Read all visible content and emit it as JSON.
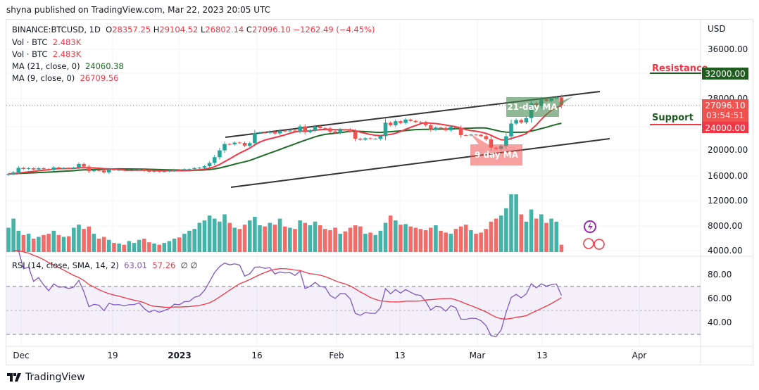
{
  "published": "shyna published on TradingView.com, Mar 22, 2023 20:05 UTC",
  "legend": {
    "symbol": "BINANCE:BTCUSD, 1D",
    "o_label": "O",
    "open": "28357.25",
    "h_label": "H",
    "high": "29104.52",
    "l_label": "L",
    "low": "26802.14",
    "c_label": "C",
    "close": "27096.10",
    "change": "−1262.49 (−4.45%)",
    "vol1_label": "Vol · BTC",
    "vol1": "2.483K",
    "vol2_label": "Vol · BTC",
    "vol2": "2.483K",
    "ma21_label": "MA (21, close, 0)",
    "ma21": "24060.38",
    "ma9_label": "MA (9, close, 0)",
    "ma9": "26709.56",
    "rsi_label": "RSI (14, close, SMA, 14, 2)",
    "rsi": "63.01",
    "rsi_sma": "57.26",
    "rsi_na": "∅ ∅"
  },
  "colors": {
    "up": "#26a69a",
    "down": "#ef5350",
    "ma21": "#1e6b27",
    "ma9": "#f23645",
    "rsi": "#7e57c2",
    "rsi_sma": "#f23645"
  },
  "annotations": {
    "resistance": "Resistance",
    "resistance_price": "32000.00",
    "support": "Support",
    "support_price": "24000.00",
    "ma21_callout": "21-day MA",
    "ma9_callout": "9 day MA",
    "last_price": "27096.10",
    "countdown": "03:54:51"
  },
  "logo": "TradingView",
  "chart_data": {
    "type": "candlestick",
    "currency": "USD",
    "price_ticks": [
      "36000.00",
      "28000.00",
      "20000.00",
      "16000.00",
      "12000.00",
      "8000.00",
      "4000.00"
    ],
    "ylim": [
      3800,
      38000
    ],
    "rsi_ticks": [
      "80.00",
      "60.00",
      "40.00"
    ],
    "x_ticks": [
      "Dec",
      "19",
      "2023",
      "16",
      "Feb",
      "13",
      "Mar",
      "13",
      "Apr"
    ],
    "first_date": "2022-11-28",
    "closes": [
      16200,
      16450,
      17150,
      16980,
      17100,
      16900,
      17100,
      16960,
      16830,
      17220,
      17130,
      17150,
      17100,
      17200,
      17780,
      17360,
      16630,
      16780,
      16740,
      16440,
      16900,
      16820,
      16830,
      16780,
      16830,
      16840,
      16920,
      16700,
      16540,
      16630,
      16540,
      16610,
      16680,
      16850,
      16830,
      16950,
      16960,
      17120,
      17180,
      17420,
      17940,
      18850,
      19930,
      20950,
      20880,
      21180,
      21130,
      20680,
      21080,
      22680,
      22780,
      22710,
      22920,
      22620,
      23060,
      23010,
      23080,
      22960,
      23750,
      22830,
      23120,
      23730,
      23490,
      23430,
      22930,
      22740,
      23250,
      23240,
      22920,
      21800,
      21630,
      21860,
      21780,
      21780,
      22200,
      24330,
      23930,
      24570,
      24290,
      24830,
      24620,
      24440,
      24390,
      23940,
      23190,
      23560,
      23500,
      23140,
      23650,
      23480,
      22360,
      22350,
      22430,
      22410,
      22200,
      21710,
      20360,
      20190,
      20630,
      22170,
      24200,
      24750,
      24380,
      25050,
      27430,
      26970,
      28040,
      27780,
      28180,
      28357,
      27096
    ],
    "volumes": [
      40,
      55,
      35,
      28,
      30,
      22,
      25,
      28,
      30,
      35,
      28,
      25,
      26,
      40,
      45,
      38,
      42,
      30,
      22,
      25,
      20,
      15,
      14,
      12,
      18,
      15,
      20,
      22,
      16,
      14,
      12,
      15,
      18,
      22,
      24,
      30,
      35,
      38,
      48,
      52,
      60,
      55,
      50,
      62,
      48,
      40,
      38,
      45,
      52,
      58,
      44,
      42,
      48,
      45,
      55,
      42,
      40,
      38,
      52,
      48,
      44,
      50,
      44,
      38,
      36,
      40,
      30,
      34,
      40,
      44,
      42,
      30,
      32,
      28,
      35,
      48,
      60,
      52,
      45,
      46,
      42,
      40,
      38,
      36,
      40,
      44,
      35,
      32,
      30,
      38,
      42,
      45,
      36,
      30,
      32,
      38,
      50,
      55,
      60,
      72,
      95,
      95,
      62,
      50,
      70,
      55,
      62,
      48,
      55,
      50,
      12
    ]
  }
}
